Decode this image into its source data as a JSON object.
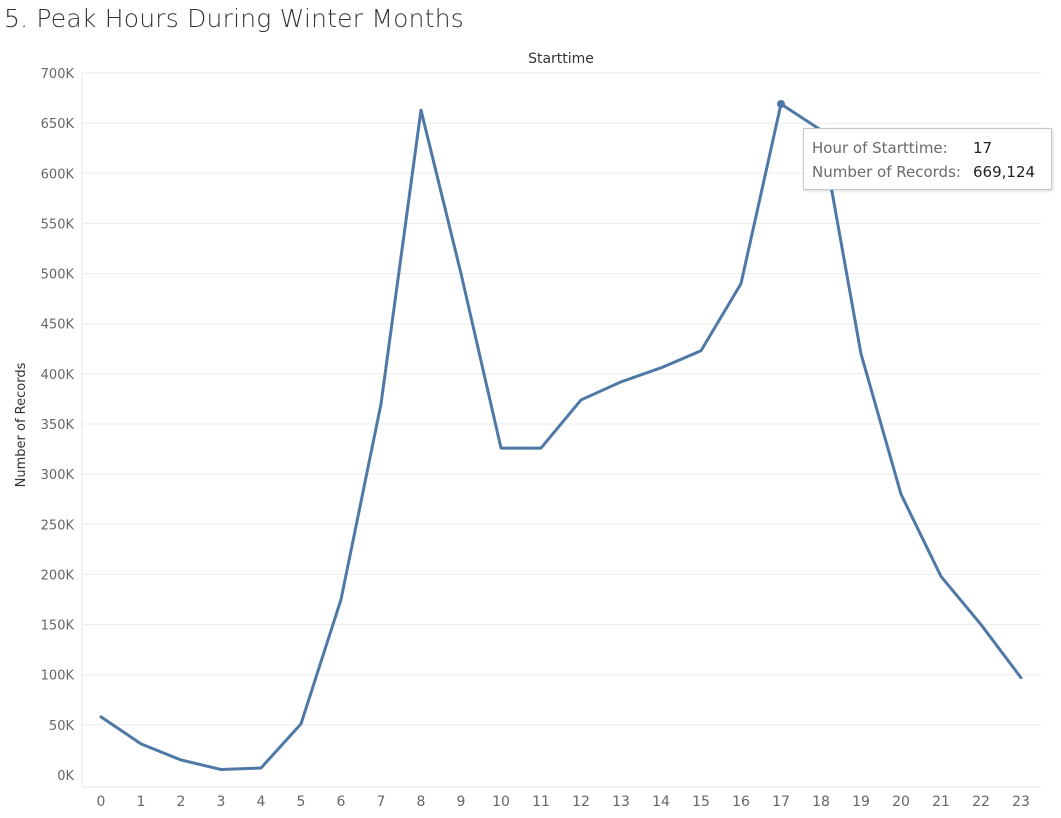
{
  "page": {
    "title": "5. Peak Hours During Winter Months"
  },
  "tooltip": {
    "label_hour": "Hour of Starttime:",
    "value_hour": "17",
    "label_records": "Number of Records:",
    "value_records": "669,124"
  },
  "chart_data": {
    "type": "line",
    "title": "Starttime",
    "xlabel": "",
    "ylabel": "Number of Records",
    "categories": [
      "0",
      "1",
      "2",
      "3",
      "4",
      "5",
      "6",
      "7",
      "8",
      "9",
      "10",
      "11",
      "12",
      "13",
      "14",
      "15",
      "16",
      "17",
      "18",
      "19",
      "20",
      "21",
      "22",
      "23"
    ],
    "series": [
      {
        "values": [
          58000,
          31000,
          15000,
          5500,
          7000,
          51000,
          175000,
          370000,
          663000,
          500000,
          326000,
          326000,
          374000,
          392000,
          406000,
          423000,
          490000,
          669124,
          643000,
          420000,
          280000,
          198000,
          150000,
          97000
        ]
      }
    ],
    "highlight_index": 17,
    "ylim": [
      0,
      700000
    ],
    "yticks": [
      0,
      50000,
      100000,
      150000,
      200000,
      250000,
      300000,
      350000,
      400000,
      450000,
      500000,
      550000,
      600000,
      650000,
      700000
    ],
    "ytick_labels": [
      "0K",
      "50K",
      "100K",
      "150K",
      "200K",
      "250K",
      "300K",
      "350K",
      "400K",
      "450K",
      "500K",
      "550K",
      "600K",
      "650K",
      "700K"
    ],
    "grid": true,
    "line_color": "#4e79a7",
    "grid_color": "#ebebeb"
  }
}
